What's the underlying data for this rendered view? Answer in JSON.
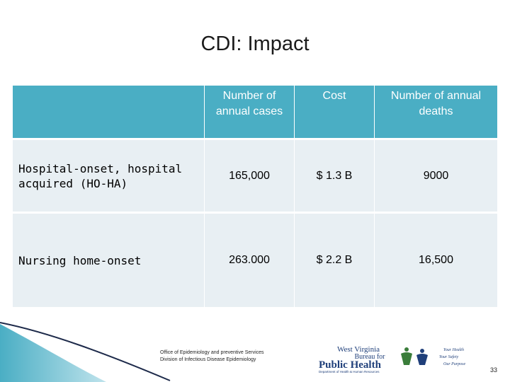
{
  "slide": {
    "title": "CDI: Impact",
    "page_number": "33"
  },
  "table": {
    "headers": [
      "",
      "Number of annual cases",
      "Cost",
      "Number of annual deaths"
    ],
    "rows": [
      {
        "label": "Hospital-onset, hospital acquired (HO-HA)",
        "cases": "165,000",
        "cost": "$ 1.3 B",
        "deaths": "9000"
      },
      {
        "label": "Nursing home-onset",
        "cases": "263.000",
        "cost": "$ 2.2 B",
        "deaths": "16,500"
      }
    ]
  },
  "footer": {
    "line1": "Office of Epidemiology and preventive Services",
    "line2": "Division of Infectious Disease Epidemiology"
  },
  "logo": {
    "line1": "West Virginia",
    "line2": "Bureau for",
    "line3": "Public Health",
    "subline": "Department of Health & Human Resources",
    "tagline1": "Your Health",
    "tagline2": "Your Safety",
    "tagline3": "Our Purpose"
  },
  "colors": {
    "header_bg": "#4aaec4",
    "row_bg": "#e8eff3",
    "logo_blue": "#1f3f7a",
    "logo_green": "#3a7d3a"
  }
}
